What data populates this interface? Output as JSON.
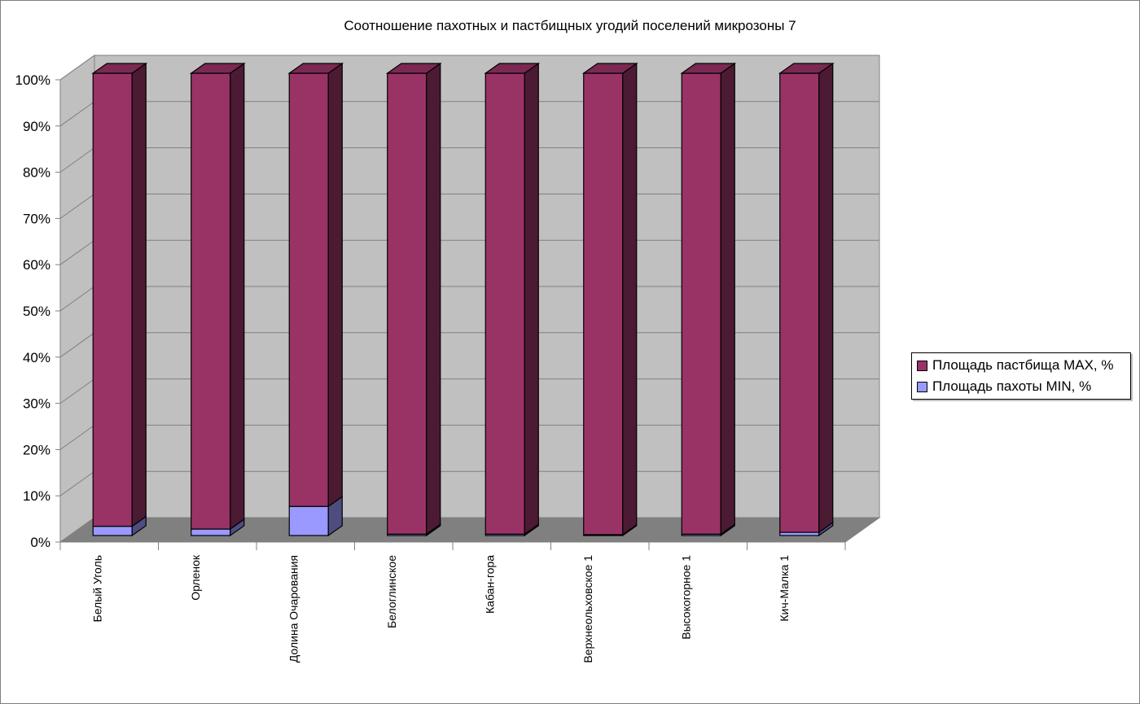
{
  "chart_data": {
    "type": "bar",
    "stacked": "percent",
    "three_d": true,
    "title": "Соотношение пахотных и пастбищных угодий поселений микрозоны 7",
    "categories": [
      "Белый Уголь",
      "Орленок",
      "Долина Очарования",
      "Белоглинское",
      "Кабан-гора",
      "Верхнеольховское 1",
      "Высокогорное 1",
      "Кич-Малка 1"
    ],
    "series": [
      {
        "name": "Площадь пахоты MIN, %",
        "color": "#9999ff",
        "side_color": "#4d4d80",
        "top_color": "#7a7acc",
        "values": [
          2.0,
          1.4,
          6.3,
          0.3,
          0.3,
          0.2,
          0.3,
          0.7
        ]
      },
      {
        "name": "Площадь пастбища MAX, %",
        "color": "#993366",
        "side_color": "#4d1a33",
        "top_color": "#7a2952",
        "values": [
          98.0,
          98.6,
          93.7,
          99.7,
          99.7,
          99.8,
          99.7,
          99.3
        ]
      }
    ],
    "ylim": [
      0,
      100
    ],
    "yticks": [
      "0%",
      "10%",
      "20%",
      "30%",
      "40%",
      "50%",
      "60%",
      "70%",
      "80%",
      "90%",
      "100%"
    ],
    "grid": true,
    "wall_color": "#c0c0c0",
    "floor_color": "#808080",
    "legend_position": "right"
  },
  "legend": {
    "items": [
      {
        "label": "Площадь пастбища MAX, %",
        "color": "#993366"
      },
      {
        "label": "Площадь пахоты MIN, %",
        "color": "#9999ff"
      }
    ]
  }
}
